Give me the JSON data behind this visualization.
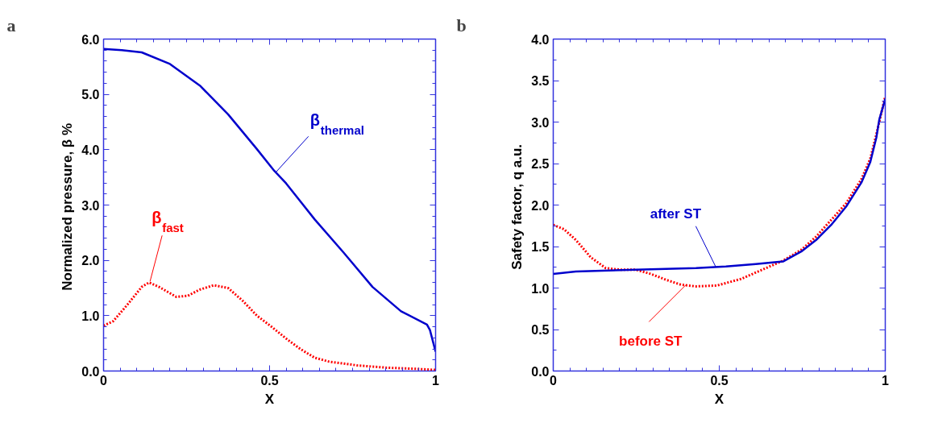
{
  "chart_data": [
    {
      "type": "line",
      "title": "a",
      "xlabel": "X",
      "ylabel": "Normalized pressure, β  %",
      "xlim": [
        0,
        1
      ],
      "ylim": [
        0,
        6
      ],
      "xticks": [
        0,
        0.5,
        1
      ],
      "yticks": [
        {
          "value": 0,
          "label": "0.0"
        },
        {
          "value": 1,
          "label": "1.0"
        },
        {
          "value": 2,
          "label": "2.0"
        },
        {
          "value": 3,
          "label": "3.0"
        },
        {
          "value": 4,
          "label": "4.0"
        },
        {
          "value": 5,
          "label": "5.0"
        },
        {
          "value": 6,
          "label": "6.0"
        }
      ],
      "grid": false,
      "series": [
        {
          "color": "#0000cc",
          "line_style": "solid",
          "x": [
            0,
            0.055,
            0.115,
            0.2,
            0.29,
            0.375,
            0.462,
            0.514,
            0.55,
            0.636,
            0.723,
            0.81,
            0.896,
            0.974,
            0.983,
            1
          ],
          "values": [
            5.82,
            5.8,
            5.76,
            5.55,
            5.16,
            4.64,
            4.01,
            3.62,
            3.39,
            2.74,
            2.14,
            1.52,
            1.08,
            0.84,
            0.74,
            0.35
          ]
        },
        {
          "color": "#ff0000",
          "line_style": "dotted",
          "x": [
            0,
            0.029,
            0.072,
            0.115,
            0.137,
            0.167,
            0.219,
            0.254,
            0.289,
            0.332,
            0.375,
            0.419,
            0.462,
            0.506,
            0.549,
            0.592,
            0.636,
            0.679,
            0.766,
            0.853,
            0.939,
            1
          ],
          "values": [
            0.82,
            0.9,
            1.2,
            1.52,
            1.6,
            1.52,
            1.34,
            1.36,
            1.47,
            1.55,
            1.5,
            1.27,
            1.0,
            0.8,
            0.59,
            0.4,
            0.24,
            0.17,
            0.1,
            0.06,
            0.04,
            0.02
          ]
        }
      ],
      "annotations": [
        {
          "text": "β$_{thermal}$",
          "x": 0.52,
          "y": 3.6
        },
        {
          "text": "β$_{fast}$",
          "x": 0.14,
          "y": 1.62
        }
      ]
    },
    {
      "type": "line",
      "title": "b",
      "xlabel": "X",
      "ylabel": "Safety factor, q  a.u.",
      "xlim": [
        0,
        1
      ],
      "ylim": [
        0,
        4
      ],
      "xticks": [
        0,
        0.5,
        1
      ],
      "yticks": [
        {
          "value": 0,
          "label": "0.0"
        },
        {
          "value": 0.5,
          "label": "0.5"
        },
        {
          "value": 1,
          "label": "1.0"
        },
        {
          "value": 1.5,
          "label": "1.5"
        },
        {
          "value": 2,
          "label": "2.0"
        },
        {
          "value": 2.5,
          "label": "2.5"
        },
        {
          "value": 3,
          "label": "3.0"
        },
        {
          "value": 3.5,
          "label": "3.5"
        },
        {
          "value": 4,
          "label": "4.0"
        }
      ],
      "grid": false,
      "series": [
        {
          "color": "#ff0000",
          "line_style": "dotted",
          "x": [
            0,
            0.032,
            0.068,
            0.113,
            0.158,
            0.204,
            0.249,
            0.294,
            0.339,
            0.385,
            0.43,
            0.493,
            0.566,
            0.629,
            0.692,
            0.747,
            0.792,
            0.837,
            0.882,
            0.928,
            0.955,
            0.973,
            1
          ],
          "values": [
            1.76,
            1.71,
            1.58,
            1.37,
            1.24,
            1.22,
            1.22,
            1.17,
            1.1,
            1.04,
            1.02,
            1.03,
            1.11,
            1.22,
            1.33,
            1.46,
            1.62,
            1.82,
            2.02,
            2.31,
            2.56,
            2.85,
            3.31
          ]
        },
        {
          "color": "#0000cc",
          "line_style": "solid",
          "x": [
            0,
            0.068,
            0.249,
            0.43,
            0.52,
            0.61,
            0.692,
            0.747,
            0.792,
            0.837,
            0.882,
            0.928,
            0.955,
            0.973,
            0.982,
            1
          ],
          "values": [
            1.17,
            1.2,
            1.22,
            1.24,
            1.26,
            1.29,
            1.32,
            1.44,
            1.58,
            1.76,
            1.98,
            2.27,
            2.52,
            2.81,
            3.03,
            3.28
          ]
        }
      ],
      "annotations": [
        {
          "text": "after ST",
          "x": 0.49,
          "y": 1.25
        },
        {
          "text": "before ST",
          "x": 0.4,
          "y": 1.04
        }
      ]
    }
  ]
}
